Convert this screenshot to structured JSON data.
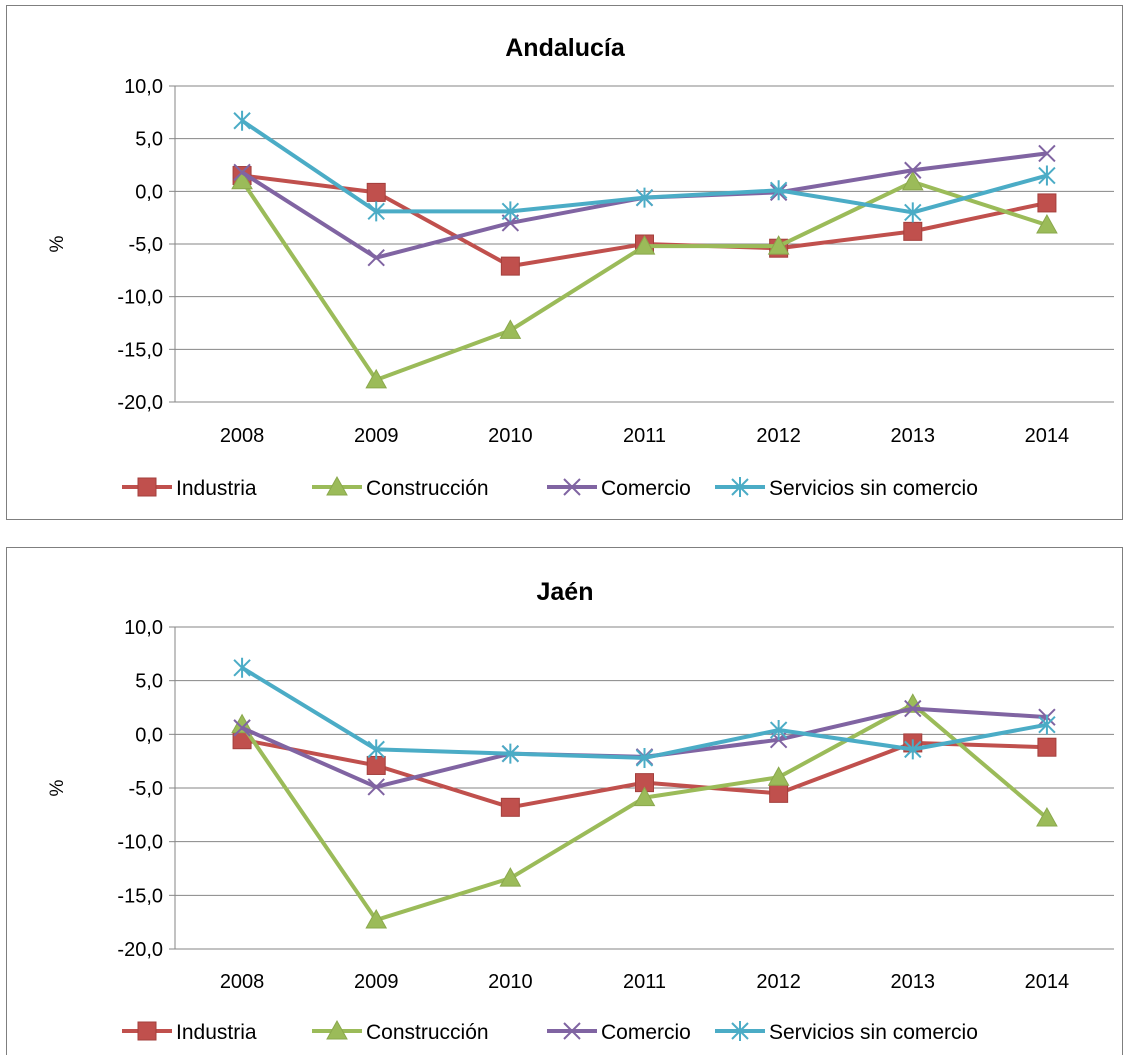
{
  "chart_data": [
    {
      "type": "line",
      "title": "Andalucía",
      "ylabel": "%",
      "xlabel": "",
      "categories": [
        "2008",
        "2009",
        "2010",
        "2011",
        "2012",
        "2013",
        "2014"
      ],
      "ylim": [
        -20,
        10
      ],
      "yticks": [
        "10,0",
        "5,0",
        "0,0",
        "-5,0",
        "-10,0",
        "-15,0",
        "-20,0"
      ],
      "grid": true,
      "legend": "bottom",
      "series": [
        {
          "name": "Industria",
          "color": "#c0504d",
          "marker": "square",
          "values": [
            1.5,
            -0.1,
            -7.1,
            -5.0,
            -5.4,
            -3.8,
            -1.1
          ]
        },
        {
          "name": "Construcción",
          "color": "#9bbb59",
          "marker": "triangle",
          "values": [
            1.0,
            -17.9,
            -13.2,
            -5.2,
            -5.2,
            0.9,
            -3.2
          ]
        },
        {
          "name": "Comercio",
          "color": "#8064a2",
          "marker": "x",
          "values": [
            1.8,
            -6.3,
            -3.0,
            -0.6,
            -0.1,
            2.0,
            3.6
          ]
        },
        {
          "name": "Servicios sin comercio",
          "color": "#4bacc6",
          "marker": "star",
          "values": [
            6.7,
            -1.9,
            -1.9,
            -0.6,
            0.1,
            -2.0,
            1.5
          ]
        }
      ]
    },
    {
      "type": "line",
      "title": "Jaén",
      "ylabel": "%",
      "xlabel": "",
      "categories": [
        "2008",
        "2009",
        "2010",
        "2011",
        "2012",
        "2013",
        "2014"
      ],
      "ylim": [
        -20,
        10
      ],
      "yticks": [
        "10,0",
        "5,0",
        "0,0",
        "-5,0",
        "-10,0",
        "-15,0",
        "-20,0"
      ],
      "grid": true,
      "legend": "bottom",
      "series": [
        {
          "name": "Industria",
          "color": "#c0504d",
          "marker": "square",
          "values": [
            -0.5,
            -2.9,
            -6.8,
            -4.5,
            -5.5,
            -0.8,
            -1.2
          ]
        },
        {
          "name": "Construcción",
          "color": "#9bbb59",
          "marker": "triangle",
          "values": [
            0.9,
            -17.3,
            -13.4,
            -5.9,
            -4.0,
            2.8,
            -7.8
          ]
        },
        {
          "name": "Comercio",
          "color": "#8064a2",
          "marker": "x",
          "values": [
            0.6,
            -4.9,
            -1.8,
            -2.1,
            -0.5,
            2.4,
            1.6
          ]
        },
        {
          "name": "Servicios sin comercio",
          "color": "#4bacc6",
          "marker": "star",
          "values": [
            6.2,
            -1.4,
            -1.8,
            -2.2,
            0.4,
            -1.4,
            0.9
          ]
        }
      ]
    }
  ]
}
